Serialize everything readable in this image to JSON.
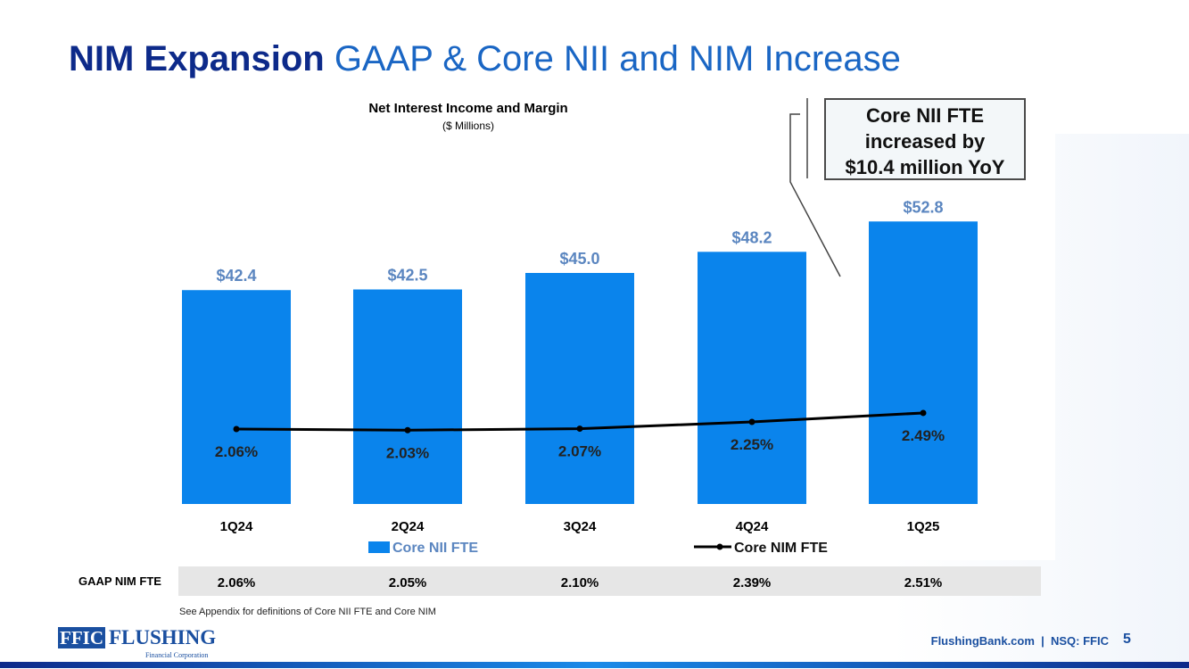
{
  "title": {
    "bold": "NIM Expansion",
    "rest": " GAAP & Core NII and NIM Increase"
  },
  "callout": {
    "line1": "Core NII FTE",
    "line2": "increased by",
    "line3": "$10.4 million YoY"
  },
  "colors": {
    "bar": "#0a84ec",
    "bar_label": "#5b86c0",
    "line": "#000000",
    "title_bold": "#0d2a8a",
    "title": "#1a66c4"
  },
  "chart_data": {
    "type": "bar",
    "title": "Net Interest Income and Margin",
    "subtitle": "($ Millions)",
    "categories": [
      "1Q24",
      "2Q24",
      "3Q24",
      "4Q24",
      "1Q25"
    ],
    "series": [
      {
        "name": "Core NII FTE",
        "type": "bar",
        "values": [
          42.4,
          42.5,
          45.0,
          48.2,
          52.8
        ],
        "labels": [
          "$42.4",
          "$42.5",
          "$45.0",
          "$48.2",
          "$52.8"
        ]
      },
      {
        "name": "Core NIM FTE",
        "type": "line",
        "values": [
          2.06,
          2.03,
          2.07,
          2.25,
          2.49
        ],
        "labels": [
          "2.06%",
          "2.03%",
          "2.07%",
          "2.25%",
          "2.49%"
        ]
      }
    ],
    "ylim": [
      10,
      55
    ],
    "legend": "bottom"
  },
  "gaap": {
    "label": "GAAP NIM FTE",
    "values": [
      "2.06%",
      "2.05%",
      "2.10%",
      "2.39%",
      "2.51%"
    ]
  },
  "note": "See Appendix for definitions of Core NII FTE and Core NIM",
  "logo": {
    "box": "FFIC",
    "name": "FLUSHING",
    "sub": "Financial Corporation"
  },
  "footer": {
    "text": "FlushingBank.com  |  NSQ: FFIC",
    "page": "5"
  }
}
